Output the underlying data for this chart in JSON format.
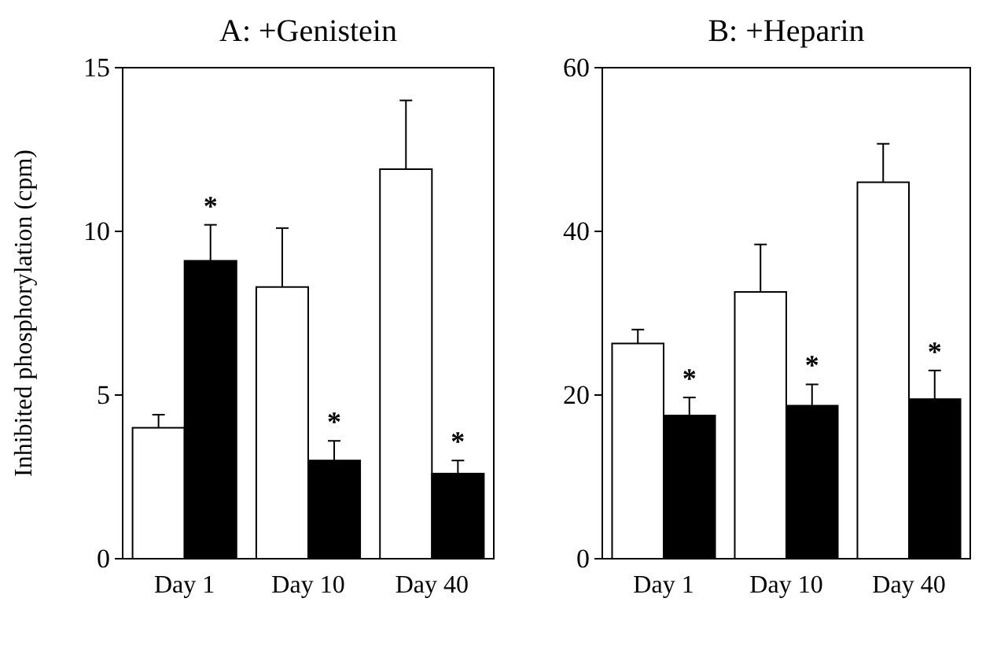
{
  "chart_data": [
    {
      "type": "bar",
      "title": "A: +Genistein",
      "ylabel": "Inhibited phosphorylation (cpm)",
      "categories": [
        "Day 1",
        "Day 10",
        "Day 40"
      ],
      "ylim": [
        0,
        15
      ],
      "yticks": [
        0,
        5,
        10,
        15
      ],
      "series": [
        {
          "color": "#ffffff",
          "values": [
            4.0,
            8.3,
            11.9
          ],
          "errors": [
            [
              4.0,
              4.4
            ],
            [
              8.3,
              10.1
            ],
            [
              11.9,
              14.0
            ]
          ]
        },
        {
          "color": "#000000",
          "values": [
            9.1,
            3.0,
            2.6
          ],
          "errors": [
            [
              9.1,
              10.2
            ],
            [
              3.0,
              3.6
            ],
            [
              2.6,
              3.0
            ]
          ]
        }
      ],
      "annotations": [
        {
          "text": "*",
          "x": "Day 1",
          "y": 9.1
        },
        {
          "text": "*",
          "x": "Day 10",
          "y": 3.0
        },
        {
          "text": "*",
          "x": "Day 40",
          "y": 2.6
        }
      ]
    },
    {
      "type": "bar",
      "title": "B: +Heparin",
      "categories": [
        "Day 1",
        "Day 10",
        "Day 40"
      ],
      "ylim": [
        0,
        60
      ],
      "yticks": [
        0,
        20,
        40,
        60
      ],
      "series": [
        {
          "color": "#ffffff",
          "values": [
            26.3,
            32.6,
            46.0
          ],
          "errors": [
            [
              26.3,
              28.0
            ],
            [
              32.6,
              38.4
            ],
            [
              46.0,
              50.7
            ]
          ]
        },
        {
          "color": "#000000",
          "values": [
            17.5,
            18.7,
            19.5
          ],
          "errors": [
            [
              17.5,
              19.7
            ],
            [
              18.7,
              21.3
            ],
            [
              19.5,
              23.0
            ]
          ]
        }
      ],
      "annotations": [
        {
          "text": "*",
          "x": "Day 1",
          "y": 17.5
        },
        {
          "text": "*",
          "x": "Day 10",
          "y": 18.7
        },
        {
          "text": "*",
          "x": "Day 40",
          "y": 19.5
        }
      ]
    }
  ]
}
